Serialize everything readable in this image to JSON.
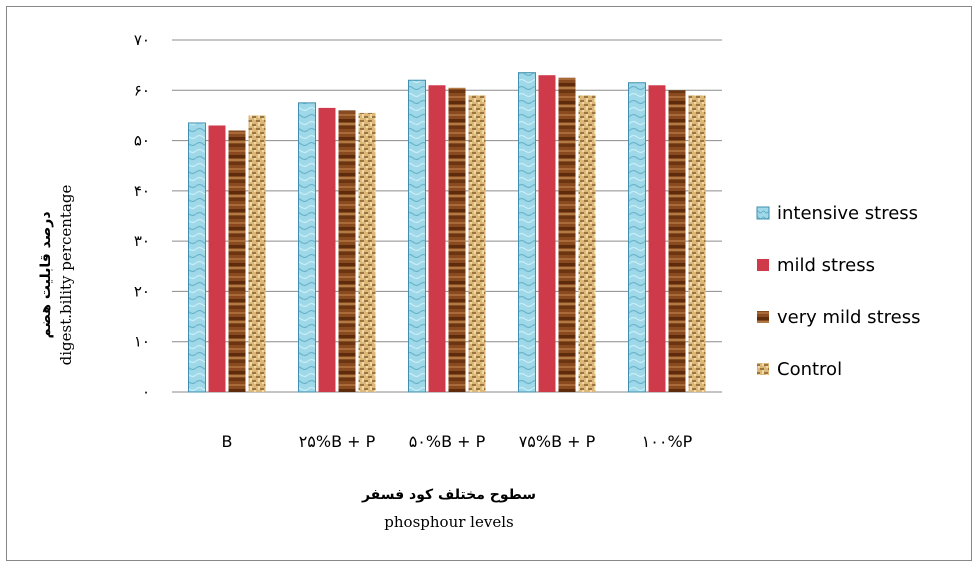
{
  "chart_data": {
    "type": "bar",
    "categories": [
      "B",
      "۲۵%B + P",
      "۵۰%B + P",
      "۷۵%B + P",
      "۱۰۰%P"
    ],
    "series": [
      {
        "name": "intensive stress",
        "values": [
          53.5,
          57.5,
          62,
          63.5,
          61.5
        ],
        "color": "#8ecfe0",
        "pattern": "water"
      },
      {
        "name": "mild stress",
        "values": [
          53,
          56.5,
          61,
          63,
          61
        ],
        "color": "#cf3a4a",
        "pattern": "solid"
      },
      {
        "name": "very mild stress",
        "values": [
          52,
          56,
          60.5,
          62.5,
          60
        ],
        "color": "#8a4a20",
        "pattern": "wood"
      },
      {
        "name": "Control",
        "values": [
          55,
          55.5,
          59,
          59,
          59
        ],
        "color": "#d8b070",
        "pattern": "burlap"
      }
    ],
    "ylim": [
      0,
      70
    ],
    "yticks": [
      "۰",
      "۱۰",
      "۲۰",
      "۳۰",
      "۴۰",
      "۵۰",
      "۶۰",
      "۷۰"
    ],
    "ytick_values": [
      0,
      10,
      20,
      30,
      40,
      50,
      60,
      70
    ],
    "ylabel_fa": "درصد قابلیت هضم",
    "ylabel": "digest.bility percentage",
    "xlabel_fa": "سطوح مختلف کود فسفر",
    "xlabel": "phosphour levels",
    "grid": true,
    "legend_position": "right"
  }
}
